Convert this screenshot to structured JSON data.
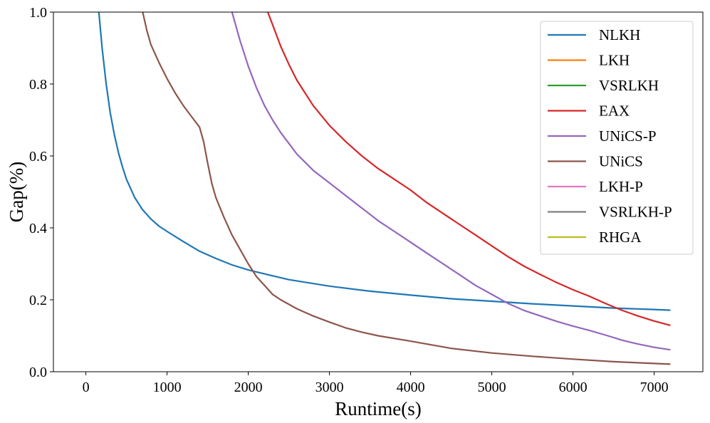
{
  "chart_data": {
    "type": "line",
    "title": "",
    "xlabel": "Runtime(s)",
    "ylabel": "Gap(%)",
    "xlim": [
      -400,
      7600
    ],
    "ylim": [
      0.0,
      1.0
    ],
    "xticks": [
      0,
      1000,
      2000,
      3000,
      4000,
      5000,
      6000,
      7000
    ],
    "yticks": [
      0.0,
      0.2,
      0.4,
      0.6,
      0.8,
      1.0
    ],
    "xtick_labels": [
      "0",
      "1000",
      "2000",
      "3000",
      "4000",
      "5000",
      "6000",
      "7000"
    ],
    "ytick_labels": [
      "0.0",
      "0.2",
      "0.4",
      "0.6",
      "0.8",
      "1.0"
    ],
    "grid": false,
    "legend_position": "top-right",
    "series": [
      {
        "name": "NLKH",
        "color": "#1f77b4",
        "x": [
          160,
          200,
          250,
          300,
          350,
          400,
          450,
          500,
          600,
          700,
          800,
          900,
          1000,
          1200,
          1400,
          1600,
          1800,
          2000,
          2200,
          2500,
          3000,
          3500,
          4000,
          4500,
          5000,
          5500,
          6000,
          6500,
          7000,
          7200
        ],
        "y": [
          1.0,
          0.9,
          0.8,
          0.72,
          0.66,
          0.61,
          0.57,
          0.535,
          0.485,
          0.45,
          0.425,
          0.405,
          0.39,
          0.362,
          0.335,
          0.315,
          0.297,
          0.283,
          0.272,
          0.256,
          0.238,
          0.224,
          0.213,
          0.203,
          0.196,
          0.189,
          0.183,
          0.177,
          0.173,
          0.171
        ]
      },
      {
        "name": "LKH",
        "color": "#ff7f0e",
        "x": [],
        "y": []
      },
      {
        "name": "VSRLKH",
        "color": "#2ca02c",
        "x": [],
        "y": []
      },
      {
        "name": "EAX",
        "color": "#d62728",
        "x": [
          2240,
          2300,
          2400,
          2500,
          2600,
          2800,
          3000,
          3200,
          3400,
          3600,
          3800,
          4000,
          4200,
          4400,
          4600,
          4800,
          5000,
          5200,
          5400,
          5600,
          5800,
          6000,
          6200,
          6400,
          6600,
          6800,
          7000,
          7200
        ],
        "y": [
          1.0,
          0.965,
          0.905,
          0.855,
          0.81,
          0.74,
          0.685,
          0.64,
          0.6,
          0.565,
          0.535,
          0.505,
          0.47,
          0.44,
          0.41,
          0.38,
          0.35,
          0.32,
          0.293,
          0.27,
          0.248,
          0.228,
          0.21,
          0.19,
          0.171,
          0.155,
          0.141,
          0.129
        ]
      },
      {
        "name": "UNiCS-P",
        "color": "#9467bd",
        "x": [
          1800,
          1850,
          1900,
          1950,
          2000,
          2100,
          2200,
          2300,
          2400,
          2500,
          2600,
          2800,
          3000,
          3200,
          3400,
          3600,
          3800,
          4000,
          4200,
          4400,
          4600,
          4800,
          5000,
          5200,
          5400,
          5600,
          5800,
          6000,
          6200,
          6400,
          6600,
          6800,
          7000,
          7200
        ],
        "y": [
          1.0,
          0.96,
          0.92,
          0.885,
          0.85,
          0.79,
          0.74,
          0.7,
          0.665,
          0.635,
          0.605,
          0.56,
          0.525,
          0.49,
          0.455,
          0.42,
          0.39,
          0.36,
          0.33,
          0.3,
          0.27,
          0.24,
          0.215,
          0.19,
          0.17,
          0.155,
          0.14,
          0.127,
          0.115,
          0.102,
          0.088,
          0.077,
          0.068,
          0.061
        ]
      },
      {
        "name": "UNiCS",
        "color": "#8c564b",
        "x": [
          700,
          750,
          800,
          900,
          1000,
          1100,
          1200,
          1300,
          1400,
          1450,
          1500,
          1550,
          1600,
          1700,
          1800,
          1900,
          2000,
          2100,
          2200,
          2300,
          2400,
          2600,
          2800,
          3000,
          3200,
          3400,
          3600,
          4000,
          4500,
          5000,
          5500,
          6000,
          6500,
          7000,
          7200
        ],
        "y": [
          1.0,
          0.95,
          0.91,
          0.86,
          0.815,
          0.775,
          0.74,
          0.71,
          0.68,
          0.64,
          0.58,
          0.525,
          0.485,
          0.43,
          0.38,
          0.34,
          0.3,
          0.265,
          0.24,
          0.215,
          0.2,
          0.175,
          0.155,
          0.138,
          0.122,
          0.11,
          0.1,
          0.085,
          0.065,
          0.052,
          0.043,
          0.035,
          0.028,
          0.023,
          0.021
        ]
      },
      {
        "name": "LKH-P",
        "color": "#e377c2",
        "x": [],
        "y": []
      },
      {
        "name": "VSRLKH-P",
        "color": "#7f7f7f",
        "x": [],
        "y": []
      },
      {
        "name": "RHGA",
        "color": "#bcbd22",
        "x": [],
        "y": []
      }
    ]
  }
}
